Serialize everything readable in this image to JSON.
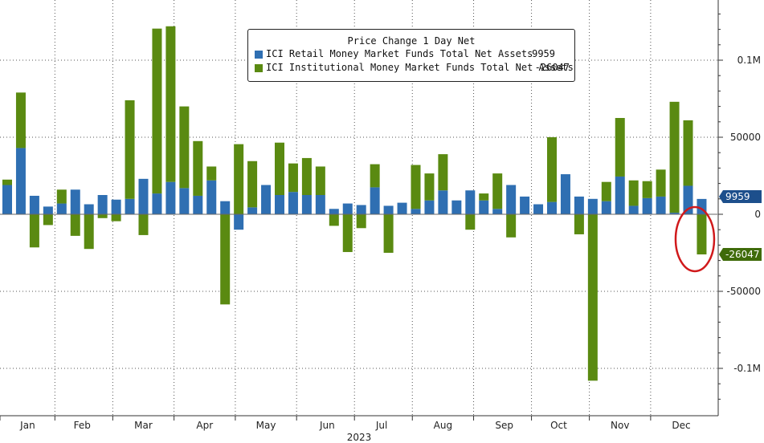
{
  "chart_data": {
    "type": "bar",
    "stacked": true,
    "title": "Price Change 1 Day Net",
    "xlabel": "2023",
    "ylabel": "",
    "ylim": [
      -130000,
      140000
    ],
    "y_axis_side": "right",
    "y_ticks": [
      {
        "value": 100000,
        "label": "0.1M"
      },
      {
        "value": 50000,
        "label": "50000"
      },
      {
        "value": 0,
        "label": "0"
      },
      {
        "value": -50000,
        "label": "-50000"
      },
      {
        "value": -100000,
        "label": "-0.1M"
      }
    ],
    "month_labels": [
      "Jan",
      "Feb",
      "Mar",
      "Apr",
      "May",
      "Jun",
      "Jul",
      "Aug",
      "Sep",
      "Oct",
      "Nov",
      "Dec"
    ],
    "month_label_positions": [
      1.5,
      5.5,
      10,
      14.5,
      19,
      23.5,
      27.5,
      32,
      36.5,
      40.5,
      45,
      49.5
    ],
    "grid": true,
    "legend_position": "top-center",
    "series": [
      {
        "name": "ICI Retail Money Market Funds Total Net Assets",
        "color": "#2f6fb2",
        "last_value": "9959",
        "values": [
          19000,
          43000,
          12000,
          5000,
          7000,
          16000,
          6500,
          12500,
          9500,
          10000,
          23000,
          13500,
          21000,
          17000,
          12000,
          22000,
          8500,
          -10000,
          4500,
          19000,
          12500,
          14500,
          12500,
          12500,
          3500,
          7000,
          6000,
          17500,
          5500,
          7500,
          3500,
          9000,
          15500,
          9000,
          15500,
          9000,
          3500,
          19000,
          11500,
          6500,
          8000,
          26000,
          11500,
          10000,
          8500,
          24500,
          5500,
          10500,
          11500,
          1000,
          18500,
          9959
        ]
      },
      {
        "name": "ICI Institutional Money Market Funds Total Net Assets",
        "color": "#5a8a11",
        "last_value": "-26047",
        "values": [
          3500,
          36000,
          -21500,
          -7000,
          9000,
          -14000,
          -22500,
          -2500,
          -4500,
          64000,
          -13500,
          107000,
          101000,
          53000,
          35500,
          9000,
          -58500,
          45500,
          30000,
          0,
          34000,
          18500,
          24000,
          18500,
          -7500,
          -24500,
          -9000,
          15000,
          -25000,
          0,
          28500,
          17500,
          23500,
          0,
          -10000,
          4500,
          23000,
          -15000,
          0,
          0,
          42000,
          0,
          -13000,
          -108000,
          12500,
          38000,
          16500,
          11000,
          17500,
          72000,
          42500,
          -26047
        ]
      }
    ],
    "highlight": {
      "shape": "ellipse",
      "around_last_bar": true,
      "color": "#d0191b"
    }
  }
}
